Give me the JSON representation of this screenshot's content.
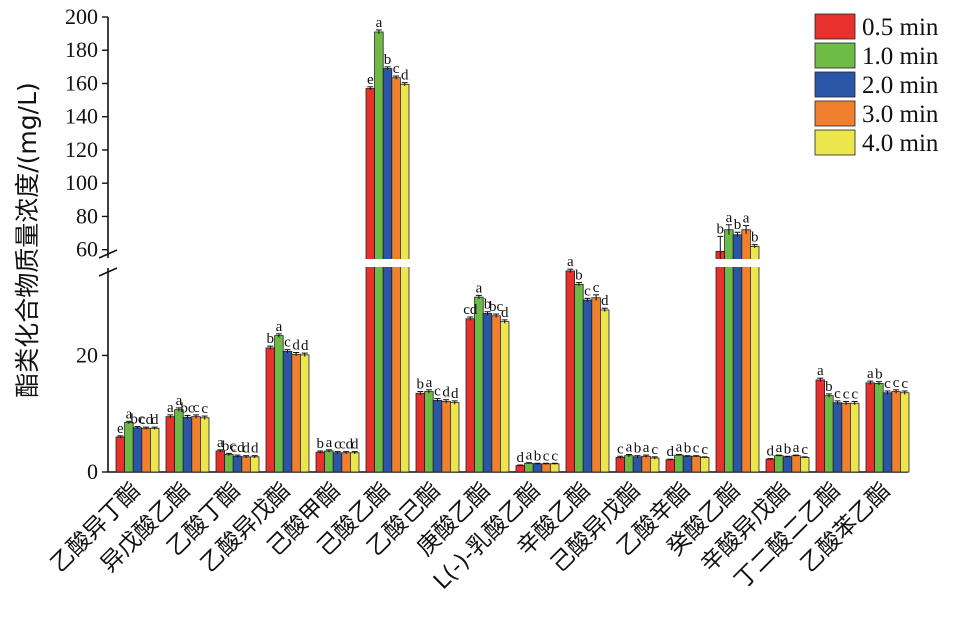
{
  "chart_data": {
    "type": "bar",
    "ylabel": "酯类化合物质量浓度/(mg/L)",
    "lower_ticks": [
      0,
      20
    ],
    "upper_ticks": [
      60,
      80,
      100,
      120,
      140,
      160,
      180,
      200
    ],
    "axis_break": [
      35,
      55
    ],
    "ylim": [
      0,
      200
    ],
    "legend_position": "top-right",
    "categories": [
      "乙酸异丁酯",
      "异戊酸乙酯",
      "乙酸丁酯",
      "乙酸异戊酯",
      "己酸甲酯",
      "己酸乙酯",
      "乙酸己酯",
      "庚酸乙酯",
      "L(-)-乳酸乙酯",
      "辛酸乙酯",
      "己酸异戊酯",
      "乙酸辛酯",
      "癸酸乙酯",
      "辛酸异戊酯",
      "丁二酸二乙酯",
      "乙酸苯乙酯"
    ],
    "series": [
      {
        "name": "0.5 min",
        "color": "#e8312c",
        "values": [
          6.0,
          9.5,
          3.6,
          21.3,
          3.4,
          157.0,
          13.5,
          26.3,
          1.1,
          34.5,
          2.5,
          2.1,
          59.0,
          2.2,
          15.8,
          15.3
        ],
        "errors": [
          0.2,
          0.3,
          0.2,
          0.3,
          0.2,
          1.0,
          0.3,
          0.3,
          0.1,
          0.3,
          0.2,
          0.1,
          9.0,
          0.1,
          0.3,
          0.3
        ],
        "labels": [
          "e",
          "a",
          "a",
          "b",
          "b",
          "e",
          "b",
          "cd",
          "d",
          "a",
          "c",
          "d",
          "b",
          "d",
          "a",
          "a"
        ]
      },
      {
        "name": "1.0 min",
        "color": "#6dbb45",
        "values": [
          8.5,
          10.7,
          3.0,
          23.4,
          3.6,
          191.0,
          13.8,
          30.0,
          1.5,
          32.2,
          2.8,
          2.9,
          72.0,
          2.8,
          13.1,
          15.2
        ],
        "errors": [
          0.2,
          0.3,
          0.2,
          0.3,
          0.2,
          1.2,
          0.3,
          0.3,
          0.1,
          0.3,
          0.2,
          0.1,
          3.0,
          0.1,
          0.3,
          0.3
        ],
        "labels": [
          "a",
          "a",
          "bc",
          "a",
          "a",
          "a",
          "a",
          "a",
          "a",
          "b",
          "a",
          "a",
          "a",
          "a",
          "b",
          "b"
        ]
      },
      {
        "name": "2.0 min",
        "color": "#2b55a6",
        "values": [
          7.6,
          9.4,
          2.7,
          20.7,
          3.3,
          169.0,
          12.3,
          27.2,
          1.4,
          29.5,
          2.6,
          2.7,
          69.0,
          2.6,
          11.9,
          13.6
        ],
        "errors": [
          0.2,
          0.3,
          0.2,
          0.3,
          0.2,
          1.0,
          0.3,
          0.3,
          0.1,
          0.3,
          0.2,
          0.1,
          1.5,
          0.1,
          0.3,
          0.3
        ],
        "labels": [
          "bc",
          "bc",
          "cd",
          "c",
          "c",
          "b",
          "c",
          "b",
          "b",
          "c",
          "b",
          "b",
          "b",
          "b",
          "c",
          "c"
        ]
      },
      {
        "name": "3.0 min",
        "color": "#f07f2e",
        "values": [
          7.5,
          9.5,
          2.6,
          20.2,
          3.3,
          163.5,
          12.1,
          26.8,
          1.4,
          29.9,
          2.7,
          2.7,
          72.0,
          2.8,
          11.8,
          13.8
        ],
        "errors": [
          0.2,
          0.3,
          0.2,
          0.3,
          0.2,
          1.0,
          0.3,
          0.3,
          0.1,
          0.5,
          0.2,
          0.1,
          2.5,
          0.1,
          0.3,
          0.3
        ],
        "labels": [
          "cd",
          "c",
          "d",
          "d",
          "cd",
          "c",
          "d",
          "bc",
          "c",
          "c",
          "a",
          "c",
          "a",
          "a",
          "c",
          "c"
        ]
      },
      {
        "name": "4.0 min",
        "color": "#ece64c",
        "values": [
          7.5,
          9.3,
          2.6,
          20.1,
          3.3,
          159.5,
          11.9,
          25.8,
          1.4,
          27.8,
          2.4,
          2.5,
          62.0,
          2.5,
          11.8,
          13.6
        ],
        "errors": [
          0.2,
          0.3,
          0.2,
          0.3,
          0.2,
          1.0,
          0.3,
          0.3,
          0.1,
          0.3,
          0.2,
          0.1,
          1.0,
          0.1,
          0.3,
          0.3
        ],
        "labels": [
          "d",
          "c",
          "d",
          "d",
          "d",
          "d",
          "d",
          "d",
          "c",
          "d",
          "c",
          "c",
          "b",
          "c",
          "c",
          "c"
        ]
      }
    ]
  }
}
